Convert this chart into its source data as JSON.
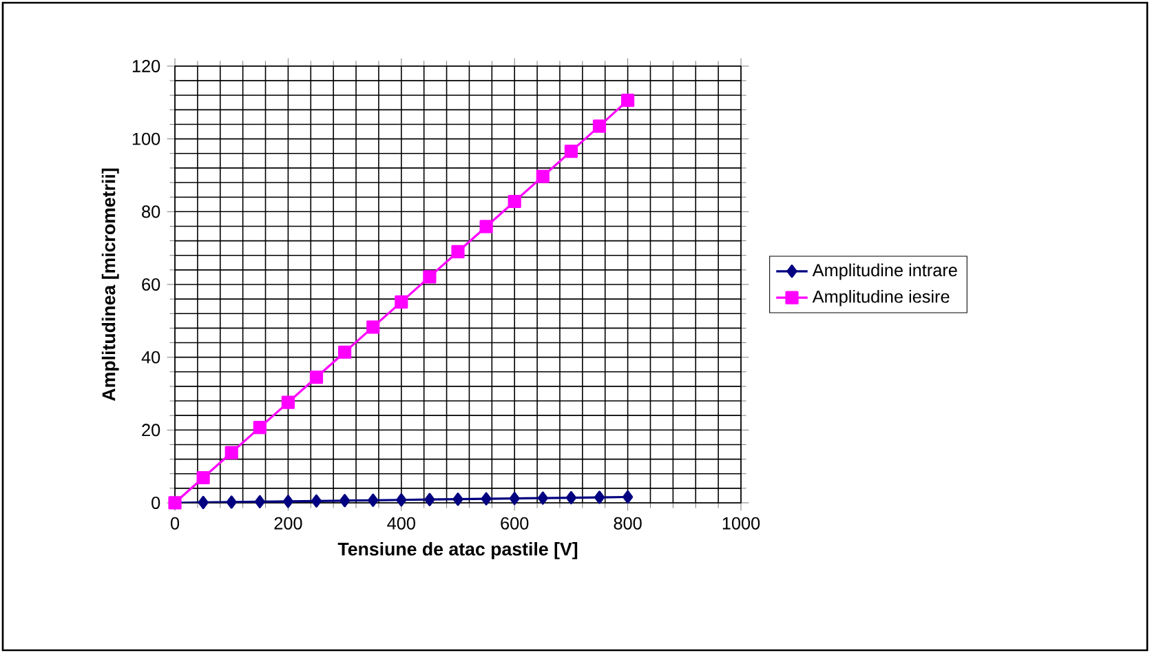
{
  "chart_data": {
    "type": "line",
    "xlabel": "Tensiune de atac pastile [V]",
    "ylabel": "Amplitudinea [micrometrii]",
    "x": [
      0,
      50,
      100,
      150,
      200,
      250,
      300,
      350,
      400,
      450,
      500,
      550,
      600,
      650,
      700,
      750,
      800
    ],
    "series": [
      {
        "name": "Amplitudine intrare",
        "color": "#000080",
        "marker": "diamond",
        "values": [
          0,
          0.1,
          0.2,
          0.3,
          0.4,
          0.5,
          0.6,
          0.7,
          0.8,
          0.9,
          1.0,
          1.1,
          1.2,
          1.3,
          1.4,
          1.5,
          1.6
        ]
      },
      {
        "name": "Amplitudine iesire",
        "color": "#ff00ff",
        "marker": "square",
        "values": [
          0,
          6.9,
          13.8,
          20.7,
          27.6,
          34.5,
          41.4,
          48.3,
          55.2,
          62.1,
          69,
          75.9,
          82.8,
          89.7,
          96.6,
          103.5,
          110.6
        ]
      }
    ],
    "xlim": [
      0,
      1000
    ],
    "xticks": [
      0,
      200,
      400,
      600,
      800,
      1000
    ],
    "ylim": [
      0,
      120
    ],
    "yticks": [
      0,
      20,
      40,
      60,
      80,
      100,
      120
    ],
    "grid": true,
    "legend": "right",
    "line_style": "solid"
  }
}
